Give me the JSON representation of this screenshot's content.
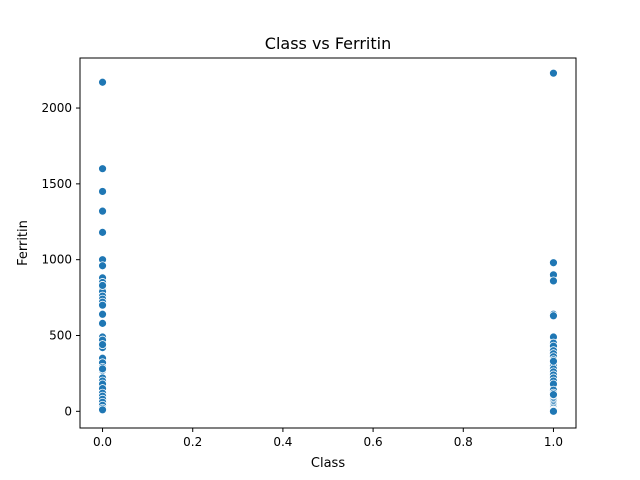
{
  "chart_data": {
    "type": "scatter",
    "title": "Class vs Ferritin",
    "xlabel": "Class",
    "ylabel": "Ferritin",
    "xlim": [
      -0.05,
      1.05
    ],
    "ylim": [
      -110,
      2330
    ],
    "xticks": [
      0.0,
      0.2,
      0.4,
      0.6,
      0.8,
      1.0
    ],
    "xtick_labels": [
      "0.0",
      "0.2",
      "0.4",
      "0.6",
      "0.8",
      "1.0"
    ],
    "yticks": [
      0,
      500,
      1000,
      1500,
      2000
    ],
    "ytick_labels": [
      "0",
      "500",
      "1000",
      "1500",
      "2000"
    ],
    "grid": false,
    "legend": "none",
    "series": [
      {
        "color": "#1f77b4",
        "x": [
          0,
          0,
          0,
          0,
          0,
          0,
          0,
          0,
          0,
          0,
          0,
          0,
          0,
          0,
          0,
          0,
          0,
          0,
          0,
          0,
          0,
          0,
          0,
          0,
          0,
          0,
          0,
          0,
          0,
          0,
          0,
          0,
          0,
          0,
          0,
          0,
          0,
          0,
          0,
          0,
          1,
          1,
          1,
          1,
          1,
          1,
          1,
          1,
          1,
          1,
          1,
          1,
          1,
          1,
          1,
          1,
          1,
          1,
          1,
          1,
          1,
          1,
          1,
          1,
          1,
          1,
          1,
          1,
          1,
          1,
          1,
          1,
          1,
          1,
          1,
          1,
          1
        ],
        "y": [
          2170,
          1600,
          1450,
          1320,
          1180,
          1000,
          960,
          880,
          850,
          830,
          810,
          790,
          760,
          740,
          720,
          700,
          640,
          580,
          490,
          470,
          440,
          420,
          350,
          320,
          290,
          270,
          220,
          200,
          180,
          150,
          120,
          100,
          80,
          60,
          40,
          20,
          10,
          440,
          830,
          280,
          2230,
          980,
          900,
          860,
          640,
          630,
          490,
          450,
          430,
          400,
          380,
          360,
          340,
          320,
          300,
          280,
          260,
          240,
          220,
          200,
          180,
          140,
          120,
          100,
          90,
          80,
          70,
          60,
          50,
          40,
          30,
          20,
          10,
          5,
          0,
          330,
          110
        ]
      }
    ]
  }
}
